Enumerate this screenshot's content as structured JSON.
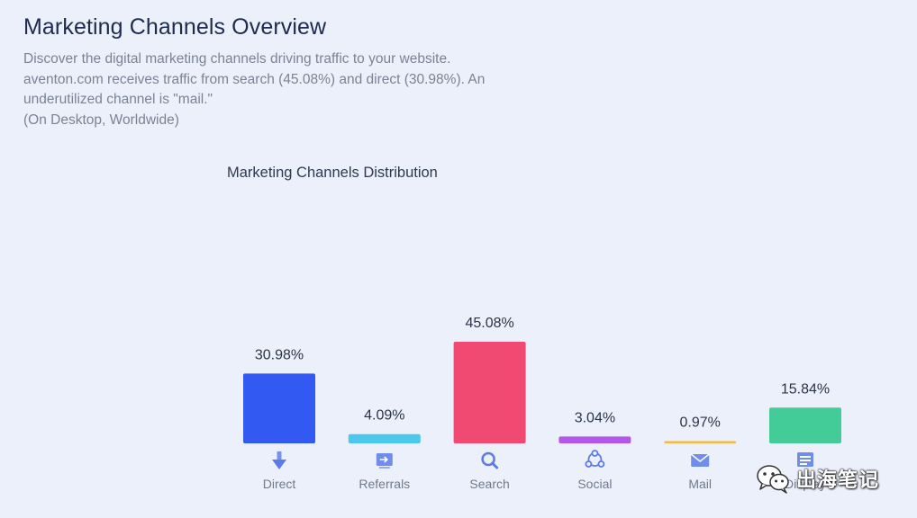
{
  "header": {
    "title": "Marketing Channels Overview",
    "description_lines": [
      "Discover the digital marketing channels driving traffic to your website.",
      "aventon.com receives traffic from search (45.08%) and direct (30.98%). An",
      "underutilized channel is \"mail.\"",
      "(On Desktop, Worldwide)"
    ]
  },
  "chart_data": {
    "type": "bar",
    "title": "Marketing Channels Distribution",
    "categories": [
      "Direct",
      "Referrals",
      "Search",
      "Social",
      "Mail",
      "Display"
    ],
    "values": [
      30.98,
      4.09,
      45.08,
      3.04,
      0.97,
      15.84
    ],
    "value_labels": [
      "30.98%",
      "4.09%",
      "45.08%",
      "3.04%",
      "0.97%",
      "15.84%"
    ],
    "colors": [
      "#3259f2",
      "#4cc8ef",
      "#f04a72",
      "#b456ea",
      "#f6b941",
      "#43cc98"
    ],
    "icons": [
      "direct-arrow-icon",
      "referrals-icon",
      "search-icon",
      "social-icon",
      "mail-icon",
      "display-icon"
    ],
    "ylim": [
      0,
      45.08
    ],
    "grid": false,
    "legend": "none",
    "xlabel": "",
    "ylabel": ""
  },
  "watermark": {
    "text": "出海笔记",
    "icon": "wechat-icon"
  }
}
